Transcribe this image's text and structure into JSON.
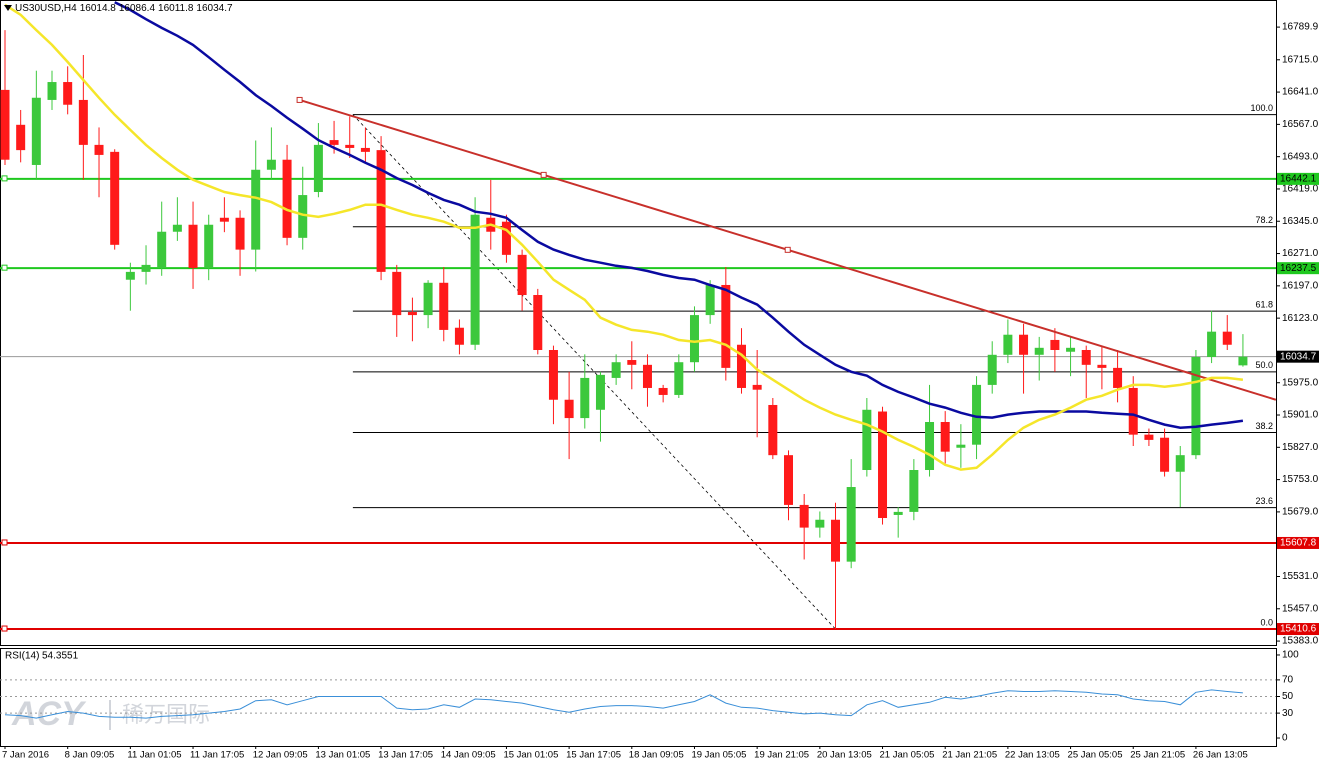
{
  "chart_data": {
    "type": "candlestick",
    "symbol": "US30USD,H4",
    "categories": [
      "7 Jan 2016",
      null,
      null,
      null,
      "8 Jan 09:05",
      null,
      null,
      null,
      "11 Jan 01:05",
      null,
      null,
      null,
      "11 Jan 17:05",
      null,
      null,
      null,
      "12 Jan 09:05",
      null,
      null,
      null,
      "13 Jan 01:05",
      null,
      null,
      null,
      "13 Jan 17:05",
      null,
      null,
      null,
      "14 Jan 09:05",
      null,
      null,
      null,
      "15 Jan 01:05",
      null,
      null,
      null,
      "15 Jan 17:05",
      null,
      null,
      null,
      "18 Jan 09:05",
      null,
      null,
      null,
      "19 Jan 05:05",
      null,
      null,
      null,
      "19 Jan 21:05",
      null,
      null,
      null,
      "20 Jan 13:05",
      null,
      null,
      null,
      "21 Jan 05:05",
      null,
      null,
      null,
      "21 Jan 21:05",
      null,
      null,
      null,
      "22 Jan 13:05",
      null,
      null,
      null,
      "25 Jan 05:05",
      null,
      null,
      null,
      "25 Jan 21:05",
      null,
      null,
      null,
      "26 Jan 13:05",
      null,
      null,
      null
    ],
    "open": [
      16646,
      16566,
      16474,
      16623,
      16664,
      16623,
      16520,
      16504,
      16211,
      16229,
      16238,
      16321,
      16337,
      16238,
      16353,
      16353,
      16280,
      16463,
      16486,
      16307,
      16412,
      16531,
      16520,
      16513,
      16508,
      16229,
      16137,
      16130,
      16204,
      16101,
      16062,
      16353,
      16344,
      16268,
      16176,
      16050,
      15936,
      15894,
      15913,
      15986,
      16027,
      16016,
      15963,
      15947,
      16022,
      16130,
      16199,
      16062,
      15970,
      15924,
      15809,
      15695,
      15643,
      15661,
      15565,
      15775,
      15909,
      15672,
      15679,
      15775,
      15885,
      15826,
      15833,
      15970,
      16039,
      16085,
      16039,
      16073,
      16046,
      16050,
      16016,
      16009,
      15963,
      15856,
      15849,
      15771,
      15809,
      16034,
      16092,
      16014.8
    ],
    "high": [
      16783,
      16600,
      16690,
      16690,
      16700,
      16726,
      16560,
      16510,
      16250,
      16290,
      16390,
      16400,
      16390,
      16360,
      16400,
      16370,
      16530,
      16560,
      16520,
      16470,
      16570,
      16575,
      16585,
      16560,
      16540,
      16245,
      16170,
      16210,
      16240,
      16120,
      16400,
      16440,
      16360,
      16280,
      16190,
      16060,
      16000,
      16040,
      16000,
      16040,
      16070,
      16040,
      15970,
      16040,
      16150,
      16210,
      16240,
      16100,
      16050,
      15940,
      15820,
      15720,
      15680,
      15700,
      15800,
      15940,
      15920,
      15690,
      15800,
      15970,
      15910,
      15880,
      15990,
      16070,
      16120,
      16110,
      16080,
      16100,
      16080,
      16060,
      16060,
      16050,
      15990,
      15870,
      15870,
      15830,
      16050,
      16140,
      16130,
      16086.4
    ],
    "low": [
      16474,
      16480,
      16440,
      16600,
      16590,
      16440,
      16400,
      16280,
      16140,
      16200,
      16220,
      16300,
      16190,
      16210,
      16320,
      16220,
      16230,
      16440,
      16290,
      16280,
      16400,
      16500,
      16490,
      16480,
      16210,
      16080,
      16070,
      16100,
      16070,
      16040,
      16050,
      16280,
      16250,
      16140,
      16040,
      15880,
      15800,
      15870,
      15840,
      15970,
      15960,
      15920,
      15930,
      15940,
      16000,
      16110,
      15980,
      15950,
      15850,
      15800,
      15660,
      15570,
      15620,
      15410.6,
      15550,
      15760,
      15650,
      15620,
      15660,
      15760,
      15790,
      15780,
      15800,
      15950,
      16020,
      15950,
      15980,
      16000,
      15990,
      15940,
      15960,
      15930,
      15830,
      15830,
      15760,
      15690,
      15800,
      16020,
      16050,
      16011.8
    ],
    "close": [
      16486,
      16508,
      16628,
      16664,
      16612,
      16520,
      16497,
      16291,
      16229,
      16245,
      16321,
      16337,
      16238,
      16337,
      16344,
      16280,
      16463,
      16486,
      16307,
      16405,
      16520,
      16520,
      16513,
      16504,
      16229,
      16130,
      16130,
      16204,
      16096,
      16062,
      16360,
      16321,
      16268,
      16176,
      16050,
      15936,
      15894,
      15986,
      15993,
      16022,
      16016,
      15963,
      15947,
      16022,
      16130,
      16199,
      16009,
      15963,
      15959,
      15809,
      15695,
      15643,
      15661,
      15565,
      15736,
      15913,
      15665,
      15679,
      15775,
      15885,
      15817,
      15833,
      15970,
      16039,
      16085,
      16039,
      16055,
      16050,
      16055,
      16016,
      16009,
      15963,
      15856,
      15844,
      15771,
      15809,
      16034,
      16092,
      16062,
      16034.7
    ],
    "up_color": "#3cc83c",
    "down_color": "#ff1a1a",
    "moving_averages": [
      {
        "color": "#0a0aa0",
        "values": [
          null,
          null,
          null,
          null,
          null,
          null,
          null,
          16847,
          16829,
          16808,
          16788,
          16770,
          16749,
          16721,
          16692,
          16664,
          16634,
          16609,
          16582,
          16557,
          16531,
          16513,
          16497,
          16479,
          16463,
          16444,
          16428,
          16410,
          16394,
          16383,
          16367,
          16362,
          16353,
          16325,
          16298,
          16280,
          16268,
          16257,
          16250,
          16243,
          16238,
          16231,
          16222,
          16215,
          16211,
          16199,
          16188,
          16170,
          16154,
          16124,
          16092,
          16062,
          16039,
          16016,
          16000,
          15991,
          15970,
          15954,
          15941,
          15927,
          15918,
          15906,
          15897,
          15895,
          15902,
          15906,
          15909,
          15909,
          15909,
          15909,
          15906,
          15904,
          15902,
          15890,
          15879,
          15872,
          15874,
          15879,
          15883,
          15888
        ]
      },
      {
        "color": "#f5e62a",
        "values": [
          16841,
          16818,
          16783,
          16749,
          16710,
          16669,
          16628,
          16589,
          16554,
          16520,
          16490,
          16463,
          16440,
          16426,
          16412,
          16405,
          16399,
          16389,
          16371,
          16360,
          16355,
          16362,
          16371,
          16383,
          16383,
          16371,
          16360,
          16353,
          16344,
          16330,
          16330,
          16337,
          16325,
          16291,
          16252,
          16211,
          16188,
          16165,
          16124,
          16108,
          16096,
          16092,
          16085,
          16073,
          16069,
          16073,
          16062,
          16039,
          16005,
          15982,
          15959,
          15936,
          15918,
          15902,
          15890,
          15879,
          15863,
          15844,
          15828,
          15810,
          15787,
          15776,
          15780,
          15810,
          15844,
          15872,
          15890,
          15902,
          15918,
          15936,
          15945,
          15959,
          15970,
          15970,
          15966,
          15970,
          15977,
          15986,
          15986,
          15982
        ]
      }
    ],
    "ylim": [
      15374,
      16852
    ],
    "yticks": [
      {
        "value": 16789.9,
        "label": "16789.9"
      },
      {
        "value": 16715,
        "label": "16715.0"
      },
      {
        "value": 16641,
        "label": "16641.0"
      },
      {
        "value": 16567,
        "label": "16567.0"
      },
      {
        "value": 16493,
        "label": "16493.0"
      },
      {
        "value": 16419,
        "label": "16419.0"
      },
      {
        "value": 16345,
        "label": "16345.0"
      },
      {
        "value": 16271,
        "label": "16271.0"
      },
      {
        "value": 16197,
        "label": "16197.0"
      },
      {
        "value": 16123,
        "label": "16123.0"
      },
      {
        "value": 15975,
        "label": "15975.0"
      },
      {
        "value": 15901,
        "label": "15901.0"
      },
      {
        "value": 15827,
        "label": "15827.0"
      },
      {
        "value": 15753,
        "label": "15753.0"
      },
      {
        "value": 15679,
        "label": "15679.0"
      },
      {
        "value": 15531,
        "label": "15531.0"
      },
      {
        "value": 15457,
        "label": "15457.0"
      },
      {
        "value": 15383,
        "label": "15383.0"
      }
    ],
    "levels": [
      {
        "value": 16442.1,
        "color": "#1fc81f",
        "text_color": "#000000"
      },
      {
        "value": 16237.5,
        "color": "#1fc81f",
        "text_color": "#000000"
      },
      {
        "value": 15607.8,
        "color": "#e00000",
        "text_color": "#ffffff"
      },
      {
        "value": 15410.6,
        "color": "#e00000",
        "text_color": "#ffffff"
      }
    ],
    "fib": {
      "high": 16589.4,
      "low": 15410.6,
      "x": [
        22.2,
        53
      ],
      "color": "#000000",
      "levels": [
        {
          "value": 100,
          "label": "100.0"
        },
        78.2,
        61.8,
        {
          "value": 50,
          "label": "50.0"
        },
        38.2,
        23.6,
        {
          "value": 0,
          "label": "0.0"
        }
      ]
    },
    "trendline": {
      "x": [
        18.8,
        81.1
      ],
      "y": [
        16623,
        15936
      ],
      "color": "#c8302b"
    },
    "rsi": {
      "label": "RSI(14)",
      "color": "#3a8fd8",
      "values": [
        28,
        27,
        24,
        28,
        32,
        30,
        26,
        25,
        25,
        24,
        26,
        27,
        28,
        30,
        32,
        35,
        45,
        46,
        40,
        45,
        50,
        50,
        50,
        50,
        50,
        36,
        34,
        35,
        40,
        37,
        47,
        46,
        44,
        42,
        38,
        34,
        31,
        35,
        38,
        39,
        39,
        38,
        36,
        40,
        44,
        52,
        42,
        37,
        36,
        33,
        31,
        29,
        30,
        28,
        27,
        40,
        45,
        37,
        40,
        43,
        49,
        47,
        50,
        54,
        57,
        56,
        56,
        57,
        56,
        55,
        53,
        52,
        47,
        45,
        44,
        40,
        55,
        58,
        56,
        54.3551
      ],
      "ylim": [
        -9.6,
        108.4
      ],
      "yticks": [
        100,
        70,
        50,
        30,
        0
      ]
    },
    "watermark": {
      "brand": "ACY",
      "text": "稀万国际"
    }
  }
}
